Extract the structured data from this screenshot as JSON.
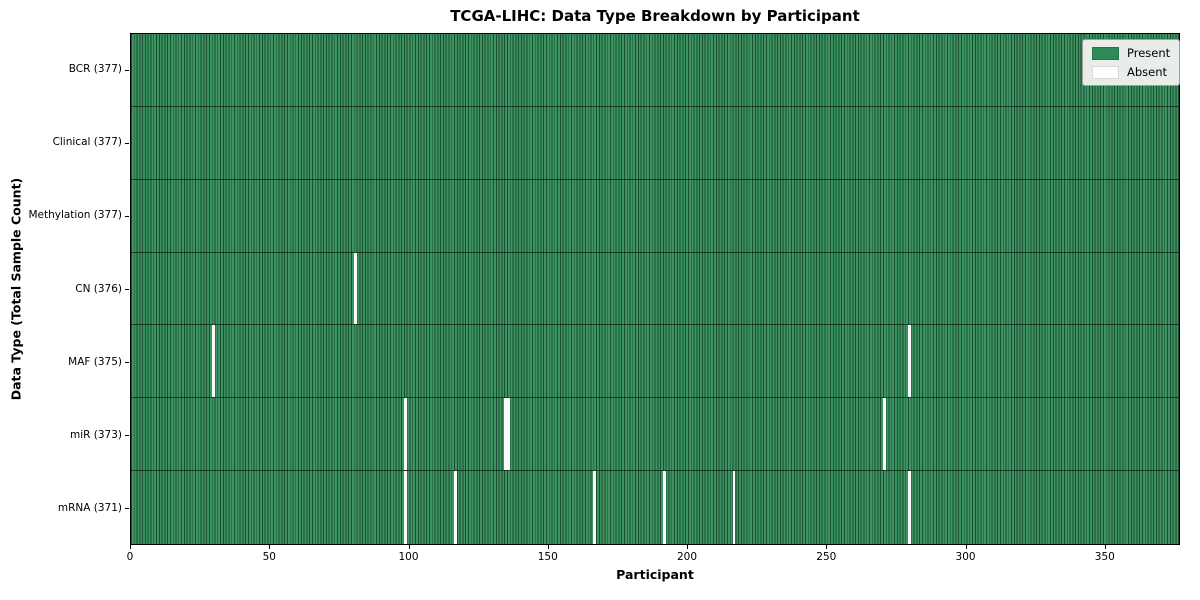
{
  "chart_data": {
    "type": "heatmap",
    "title": "TCGA-LIHC: Data Type Breakdown by Participant",
    "xlabel": "Participant",
    "ylabel": "Data Type (Total Sample Count)",
    "n_participants": 377,
    "xlim": [
      0,
      377
    ],
    "x_ticks": [
      0,
      50,
      100,
      150,
      200,
      250,
      300,
      350
    ],
    "legend": [
      {
        "label": "Present",
        "color": "#2e8b57"
      },
      {
        "label": "Absent",
        "color": "#ffffff"
      }
    ],
    "rows": [
      {
        "label": "BCR (377)",
        "data_type": "BCR",
        "present_count": 377,
        "absent_participants": []
      },
      {
        "label": "Clinical (377)",
        "data_type": "Clinical",
        "present_count": 377,
        "absent_participants": []
      },
      {
        "label": "Methylation (377)",
        "data_type": "Methylation",
        "present_count": 377,
        "absent_participants": []
      },
      {
        "label": "CN (376)",
        "data_type": "CN",
        "present_count": 376,
        "absent_participants": [
          80
        ]
      },
      {
        "label": "MAF (375)",
        "data_type": "MAF",
        "present_count": 375,
        "absent_participants": [
          29,
          279
        ]
      },
      {
        "label": "miR (373)",
        "data_type": "miR",
        "present_count": 373,
        "absent_participants": [
          98,
          134,
          135,
          270
        ]
      },
      {
        "label": "mRNA (371)",
        "data_type": "mRNA",
        "present_count": 371,
        "absent_participants": [
          98,
          116,
          166,
          191,
          216,
          279
        ]
      }
    ],
    "colors": {
      "present_fill": "#3e9461",
      "present_edge": "#1b4d32",
      "absent_fill": "#fbfbfb",
      "row_divider": "rgba(0,0,0,0.55)",
      "legend_present": "#2e8b57",
      "legend_absent": "#ffffff"
    },
    "legend_position": "upper right",
    "grid": "cell-edges"
  }
}
